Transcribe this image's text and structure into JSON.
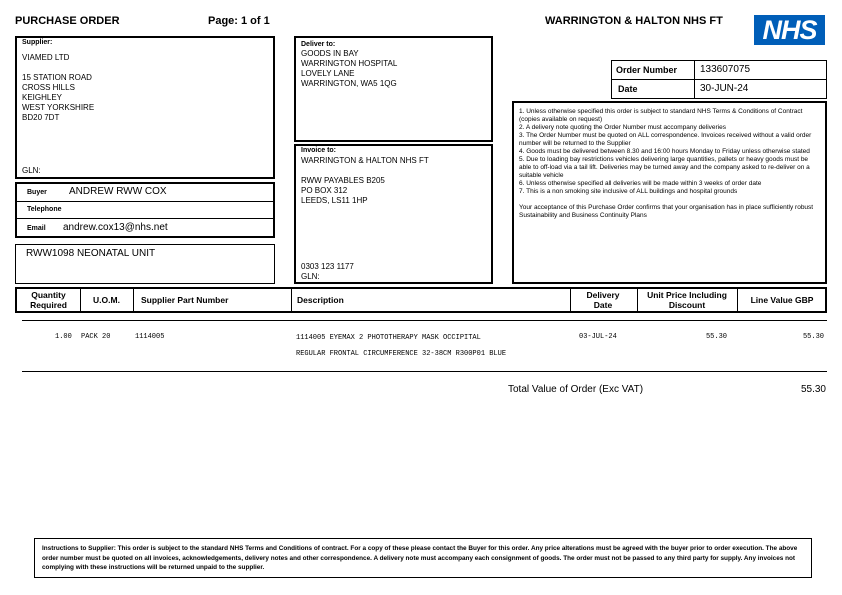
{
  "header": {
    "title": "PURCHASE ORDER",
    "page": "Page: 1 of 1",
    "organisation": "WARRINGTON & HALTON NHS FT",
    "logo_text": "NHS",
    "logo_color": "#005EB8"
  },
  "supplier": {
    "label": "Supplier:",
    "lines": [
      "VIAMED LTD",
      "",
      "15 STATION ROAD",
      "CROSS HILLS",
      "KEIGHLEY",
      "WEST YORKSHIRE",
      "BD20 7DT"
    ],
    "gln_label": "GLN:"
  },
  "buyer": {
    "buyer_label": "Buyer",
    "buyer_value": "ANDREW RWW COX",
    "telephone_label": "Telephone",
    "telephone_value": "",
    "email_label": "Email",
    "email_value": "andrew.cox13@nhs.net"
  },
  "department": "RWW1098 NEONATAL UNIT",
  "deliver_to": {
    "label": "Deliver to:",
    "lines": [
      "GOODS IN BAY",
      "WARRINGTON HOSPITAL",
      "LOVELY LANE",
      "WARRINGTON, WA5 1QG"
    ]
  },
  "invoice_to": {
    "label": "Invoice to:",
    "lines": [
      "WARRINGTON & HALTON NHS FT",
      "",
      "RWW PAYABLES B205",
      "PO BOX 312",
      "LEEDS, LS11 1HP"
    ],
    "phone": "0303 123 1177",
    "gln_label": "GLN:"
  },
  "order": {
    "number_label": "Order Number",
    "number": "133607075",
    "date_label": "Date",
    "date": "30-JUN-24"
  },
  "terms": [
    "1. Unless otherwise specified this order is subject to standard NHS Terms & Conditions of Contract (copies available on request)",
    "2. A delivery note quoting the Order Number must accompany deliveries",
    "3. The Order Number must be quoted on ALL correspondence.  Invoices received without a valid order number will be returned to the Supplier",
    "4. Goods must be delivered between 8.30 and 16:00 hours Monday to Friday unless otherwise stated",
    "5. Due to loading bay restrictions vehicles delivering large quantities, pallets or heavy goods must be able to off-load via a tail lift.  Deliveries may be turned away and the company asked to re-deliver on a suitable vehicle",
    "6. Unless otherwise specified all deliveries will be made within 3 weeks of order date",
    "7. This is a non smoking site inclusive of ALL buildings and hospital grounds"
  ],
  "terms_footer": "Your acceptance of this Purchase Order confirms that your organisation has in place sufficiently robust Sustainability and Business Continuity Plans",
  "table": {
    "columns": [
      "Quantity Required",
      "U.O.M.",
      "Supplier Part Number",
      "Description",
      "Delivery Date",
      "Unit Price Including Discount",
      "Line Value GBP"
    ],
    "rows": [
      {
        "qty": "1.00",
        "uom": "PACK 20",
        "part": "1114005",
        "description": "1114005 EYEMAX 2 PHOTOTHERAPY MASK OCCIPITAL",
        "description2": "REGULAR FRONTAL CIRCUMFERENCE 32-38CM R300P01 BLUE",
        "date": "03-JUL-24",
        "unit_price": "55.30",
        "line_value": "55.30"
      }
    ]
  },
  "total": {
    "label": "Total Value of Order (Exc VAT)",
    "value": "55.30"
  },
  "instructions": "Instructions to Supplier: This order is subject to the standard NHS Terms and Conditions of contract. For a copy of these please contact the Buyer for this order. Any price alterations must be agreed with the buyer prior to order execution. The above order number must be quoted on all invoices, acknowledgements, delivery notes and other correspondence. A delivery note must accompany each consignment of goods. The order must not be passed to any third party for supply. Any invoices not complying with these instructions will be returned unpaid to the supplier."
}
